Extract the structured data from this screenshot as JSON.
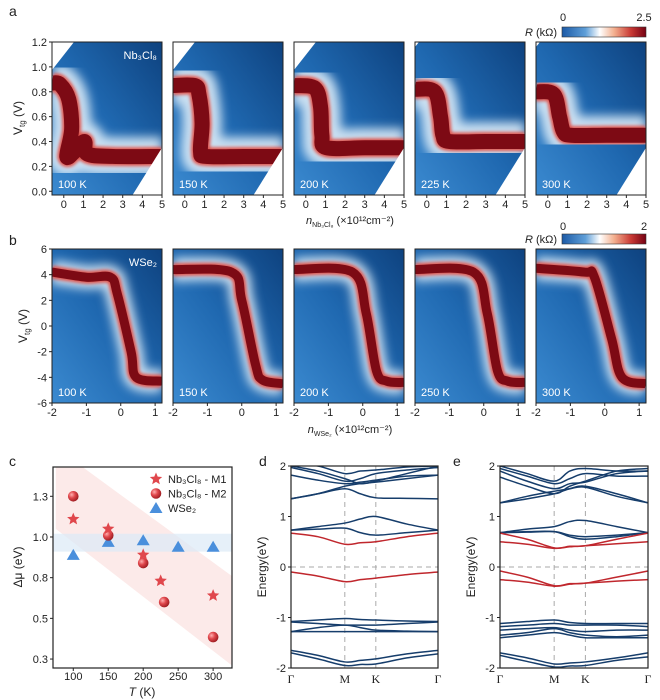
{
  "panel_labels": [
    "a",
    "b",
    "c",
    "d",
    "e"
  ],
  "chart_data": [
    {
      "panel": "a",
      "type": "heatmap",
      "material_label": "Nb₃Cl₈",
      "ylabel": {
        "main": "V",
        "sub": "tg",
        "rest": " (V)"
      },
      "xlabel": {
        "main": "n",
        "sub": "Nb₃Cl₈",
        "rest": " (×10¹²cm⁻²)"
      },
      "xlim": [
        -0.6,
        5
      ],
      "ylim": [
        -0.03,
        1.2
      ],
      "xticks": [
        "0",
        "1",
        "2",
        "3",
        "4",
        "5"
      ],
      "yticks": [
        "0.0",
        "0.2",
        "0.4",
        "0.6",
        "0.8",
        "1.0",
        "1.2"
      ],
      "colorbar": {
        "label_main": "R",
        "label_rest": " (kΩ)",
        "min": "0",
        "max": "2.5"
      },
      "temperatures": [
        "100 K",
        "150 K",
        "200 K",
        "225 K",
        "300 K"
      ],
      "resistance_peak_ridge": [
        [
          [
            -0.6,
            0.87
          ],
          [
            -0.2,
            0.86
          ],
          [
            0.25,
            0.74
          ],
          [
            0.4,
            0.5
          ],
          [
            0.15,
            0.28
          ],
          [
            0.55,
            0.32
          ],
          [
            1.05,
            0.4
          ],
          [
            1.2,
            0.3
          ],
          [
            2.5,
            0.28
          ],
          [
            5,
            0.28
          ]
        ],
        [
          [
            -0.6,
            0.85
          ],
          [
            0.5,
            0.85
          ],
          [
            0.72,
            0.78
          ],
          [
            0.88,
            0.55
          ],
          [
            0.8,
            0.32
          ],
          [
            1.1,
            0.28
          ],
          [
            3,
            0.28
          ],
          [
            5,
            0.28
          ]
        ],
        [
          [
            -0.6,
            0.85
          ],
          [
            0.45,
            0.83
          ],
          [
            0.75,
            0.68
          ],
          [
            0.82,
            0.45
          ],
          [
            1.05,
            0.35
          ],
          [
            3,
            0.35
          ],
          [
            5,
            0.35
          ]
        ],
        [
          [
            -0.6,
            0.82
          ],
          [
            0.4,
            0.8
          ],
          [
            0.7,
            0.6
          ],
          [
            0.82,
            0.45
          ],
          [
            1.15,
            0.4
          ],
          [
            3,
            0.4
          ],
          [
            5,
            0.4
          ]
        ],
        [
          [
            -0.6,
            0.8
          ],
          [
            0.3,
            0.78
          ],
          [
            0.6,
            0.6
          ],
          [
            0.8,
            0.48
          ],
          [
            1.2,
            0.45
          ],
          [
            3,
            0.45
          ],
          [
            5,
            0.45
          ]
        ]
      ]
    },
    {
      "panel": "b",
      "type": "heatmap",
      "material_label": "WSe₂",
      "ylabel": {
        "main": "V",
        "sub": "tg",
        "rest": " (V)"
      },
      "xlabel": {
        "main": "n",
        "sub": "WSe₂",
        "rest": " (×10¹²cm⁻²)"
      },
      "xlim": [
        -2,
        1.2
      ],
      "ylim": [
        -6,
        6
      ],
      "xticks": [
        "-2",
        "-1",
        "0",
        "1"
      ],
      "yticks": [
        "-6",
        "-4",
        "-2",
        "0",
        "2",
        "4",
        "6"
      ],
      "colorbar": {
        "label_main": "R",
        "label_rest": " (kΩ)",
        "min": "0",
        "max": "2"
      },
      "temperatures": [
        "100 K",
        "150 K",
        "200 K",
        "250 K",
        "300 K"
      ],
      "resistance_peak_ridge": [
        [
          [
            -2,
            4.2
          ],
          [
            -1,
            3.8
          ],
          [
            -0.3,
            3.8
          ],
          [
            -0.1,
            2.5
          ],
          [
            0.3,
            -2
          ],
          [
            0.45,
            -4
          ],
          [
            1.2,
            -4.3
          ]
        ],
        [
          [
            -2,
            4.4
          ],
          [
            -0.3,
            4.2
          ],
          [
            0,
            2
          ],
          [
            0.4,
            -3
          ],
          [
            0.6,
            -4.2
          ],
          [
            1.2,
            -4.5
          ]
        ],
        [
          [
            -2,
            4.4
          ],
          [
            -0.3,
            4.2
          ],
          [
            0.1,
            1
          ],
          [
            0.4,
            -3.5
          ],
          [
            0.7,
            -4.3
          ],
          [
            1.2,
            -4.4
          ]
        ],
        [
          [
            -2,
            4.4
          ],
          [
            -0.3,
            4.2
          ],
          [
            0.1,
            1
          ],
          [
            0.4,
            -3.5
          ],
          [
            0.7,
            -4.3
          ],
          [
            1.2,
            -4.4
          ]
        ],
        [
          [
            -2,
            4.5
          ],
          [
            -0.6,
            4.2
          ],
          [
            -0.3,
            3.8
          ],
          [
            0.2,
            -1
          ],
          [
            0.5,
            -4
          ],
          [
            1.2,
            -4.5
          ]
        ]
      ]
    },
    {
      "panel": "c",
      "type": "scatter",
      "xlabel": {
        "main": "T",
        "rest": " (K)"
      },
      "ylabel": {
        "main": "Δμ",
        "rest": " (eV)"
      },
      "xlim": [
        71,
        327
      ],
      "ylim": [
        0.195,
        1.43
      ],
      "xticks": [
        100,
        150,
        200,
        250,
        300
      ],
      "yticks": [
        0.25,
        0.5,
        0.75,
        1.0,
        1.25
      ],
      "ytick_labels": [
        "0.3",
        "0.5",
        "0.8",
        "1.0",
        "1.3"
      ],
      "legend_position": "top-right",
      "series": [
        {
          "name": "Nb₃Cl₈ - M1",
          "marker": "star",
          "color": "#e0474c",
          "x": [
            100,
            150,
            200,
            225,
            300
          ],
          "y": [
            1.11,
            1.05,
            0.89,
            0.73,
            0.64
          ]
        },
        {
          "name": "Nb₃Cl₈ - M2",
          "marker": "sphere",
          "color": "#d93a3f",
          "x": [
            100,
            150,
            200,
            230,
            300
          ],
          "y": [
            1.25,
            1.01,
            0.84,
            0.6,
            0.385
          ]
        },
        {
          "name": "WSe₂",
          "marker": "triangle",
          "color": "#4a8fdc",
          "x": [
            100,
            150,
            200,
            250,
            300
          ],
          "y": [
            0.89,
            0.97,
            0.98,
            0.94,
            0.94
          ]
        }
      ]
    },
    {
      "panel": "d",
      "type": "line",
      "ylabel": "Energy(eV)",
      "ylim": [
        -2,
        2
      ],
      "yticks": [
        "-2",
        "-1",
        "0",
        "1",
        "2"
      ],
      "kpoints": [
        "Γ",
        "M",
        "K",
        "Γ"
      ],
      "colors": {
        "flat_bands": "#c0272d",
        "other_bands": "#163d6b"
      },
      "bands_highlighted": [
        [
          0.67,
          0.6,
          0.45,
          0.48,
          0.5,
          0.6,
          0.67
        ],
        [
          -0.1,
          -0.18,
          -0.29,
          -0.25,
          -0.22,
          -0.15,
          -0.1
        ]
      ],
      "bands": [
        [
          0.73,
          0.8,
          0.87,
          0.95,
          1.0,
          0.85,
          0.73
        ],
        [
          0.73,
          0.75,
          0.77,
          0.68,
          0.63,
          0.68,
          0.73
        ],
        [
          1.35,
          1.45,
          1.55,
          1.45,
          1.37,
          1.36,
          1.35
        ],
        [
          1.35,
          1.45,
          1.6,
          1.65,
          1.68,
          1.75,
          1.82
        ],
        [
          1.82,
          1.72,
          1.65,
          1.68,
          1.72,
          1.8,
          1.82
        ],
        [
          1.97,
          1.85,
          1.7,
          1.75,
          1.85,
          1.92,
          1.97
        ],
        [
          2.0,
          1.9,
          1.75,
          1.65,
          1.7,
          1.85,
          2.0
        ],
        [
          2.05,
          2.0,
          1.85,
          1.9,
          1.92,
          1.98,
          2.0
        ],
        [
          -1.08,
          -1.05,
          -1.02,
          -1.04,
          -1.05,
          -1.07,
          -1.08
        ],
        [
          -1.09,
          -1.12,
          -1.15,
          -1.15,
          -1.15,
          -1.12,
          -1.09
        ],
        [
          -1.28,
          -1.2,
          -1.15,
          -1.2,
          -1.25,
          -1.27,
          -1.28
        ],
        [
          -1.28,
          -1.28,
          -1.28,
          -1.28,
          -1.28,
          -1.28,
          -1.28
        ],
        [
          -1.65,
          -1.75,
          -1.88,
          -1.85,
          -1.82,
          -1.72,
          -1.65
        ],
        [
          -1.7,
          -1.82,
          -1.95,
          -1.93,
          -1.92,
          -1.8,
          -1.72
        ]
      ]
    },
    {
      "panel": "e",
      "type": "line",
      "ylabel": "Energy(eV)",
      "ylim": [
        -2,
        2
      ],
      "yticks": [
        "-2",
        "-1",
        "0",
        "1",
        "2"
      ],
      "kpoints": [
        "Γ",
        "M",
        "K",
        "Γ"
      ],
      "colors": {
        "flat_bands": "#c0272d",
        "other_bands": "#163d6b"
      },
      "bands_highlighted": [
        [
          0.67,
          0.55,
          0.38,
          0.41,
          0.42,
          0.55,
          0.67
        ],
        [
          0.5,
          0.45,
          0.37,
          0.4,
          0.42,
          0.46,
          0.5
        ],
        [
          -0.08,
          -0.2,
          -0.37,
          -0.33,
          -0.32,
          -0.2,
          -0.08
        ],
        [
          -0.25,
          -0.3,
          -0.38,
          -0.34,
          -0.32,
          -0.28,
          -0.25
        ]
      ],
      "bands": [
        [
          0.68,
          0.75,
          0.8,
          0.9,
          0.92,
          0.8,
          0.68
        ],
        [
          0.68,
          0.7,
          0.7,
          0.6,
          0.55,
          0.6,
          0.68
        ],
        [
          0.68,
          0.69,
          0.7,
          0.63,
          0.6,
          0.63,
          0.68
        ],
        [
          1.27,
          1.35,
          1.45,
          1.55,
          1.6,
          1.45,
          1.27
        ],
        [
          1.27,
          1.4,
          1.5,
          1.55,
          1.58,
          1.4,
          1.27
        ],
        [
          1.78,
          1.6,
          1.45,
          1.6,
          1.7,
          1.9,
          1.95
        ],
        [
          1.9,
          1.7,
          1.55,
          1.65,
          1.68,
          1.85,
          1.9
        ],
        [
          1.95,
          1.8,
          1.65,
          1.75,
          1.85,
          1.8,
          1.8
        ],
        [
          2.0,
          1.85,
          1.7,
          1.9,
          1.95,
          1.9,
          1.9
        ],
        [
          -1.12,
          -1.08,
          -1.05,
          -1.1,
          -1.12,
          -1.12,
          -1.12
        ],
        [
          -1.18,
          -1.15,
          -1.12,
          -1.15,
          -1.15,
          -1.15,
          -1.18
        ],
        [
          -1.25,
          -1.22,
          -1.2,
          -1.25,
          -1.28,
          -1.25,
          -1.25
        ],
        [
          -1.35,
          -1.3,
          -1.22,
          -1.3,
          -1.35,
          -1.38,
          -1.35
        ],
        [
          -1.4,
          -1.35,
          -1.3,
          -1.35,
          -1.4,
          -1.4,
          -1.4
        ],
        [
          -1.7,
          -1.8,
          -1.92,
          -1.9,
          -1.88,
          -1.8,
          -1.7
        ],
        [
          -1.75,
          -1.87,
          -1.98,
          -1.96,
          -1.95,
          -1.85,
          -1.78
        ]
      ]
    }
  ]
}
